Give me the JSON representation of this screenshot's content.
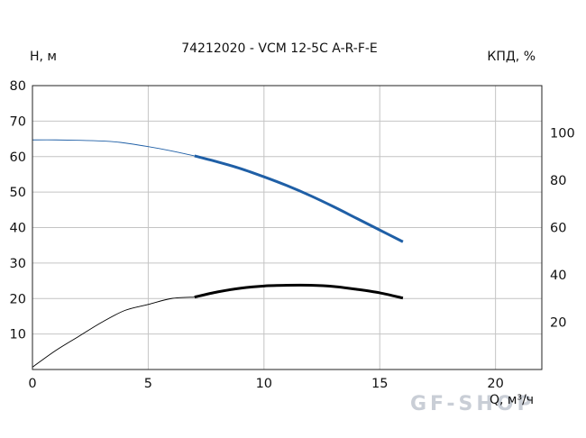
{
  "chart_data": {
    "type": "line",
    "title": "74212020 - VCM 12-5C A-R-F-E",
    "ylabel": "H, м",
    "y2label": "КПД, %",
    "xlabel": "Q, м³/ч",
    "xlim": [
      0,
      22
    ],
    "ylim": [
      0,
      80
    ],
    "y2lim": [
      0,
      120
    ],
    "xticks": [
      "0",
      "5",
      "10",
      "15",
      "20"
    ],
    "yticks": [
      "10",
      "20",
      "30",
      "40",
      "50",
      "60",
      "70",
      "80"
    ],
    "y2ticks": [
      "20",
      "40",
      "60",
      "80",
      "100"
    ],
    "grid": true,
    "series": [
      {
        "axis": "left",
        "color": "#1f5fa6",
        "extension_x": [
          0,
          1,
          2,
          3,
          3.8,
          5,
          6,
          7
        ],
        "extension_y": [
          64.7,
          64.7,
          64.6,
          64.4,
          64.0,
          62.8,
          61.6,
          60.2
        ],
        "x": [
          7,
          8,
          9,
          10,
          11,
          12,
          13,
          14,
          15,
          16
        ],
        "y": [
          60.2,
          58.5,
          56.6,
          54.3,
          51.8,
          49.0,
          45.9,
          42.6,
          39.3,
          36.0
        ]
      },
      {
        "axis": "right",
        "color": "#000000",
        "extension_x": [
          0,
          1,
          2,
          3,
          4,
          5,
          6,
          7
        ],
        "extension_y": [
          1,
          8,
          14,
          20,
          25,
          27.5,
          30,
          30.6
        ],
        "x": [
          7,
          8,
          9,
          10,
          11,
          12,
          13,
          14,
          15,
          16
        ],
        "y": [
          30.6,
          32.8,
          34.4,
          35.3,
          35.6,
          35.6,
          35.1,
          33.9,
          32.4,
          30.2
        ]
      }
    ]
  },
  "watermark": "GF-SHOP"
}
